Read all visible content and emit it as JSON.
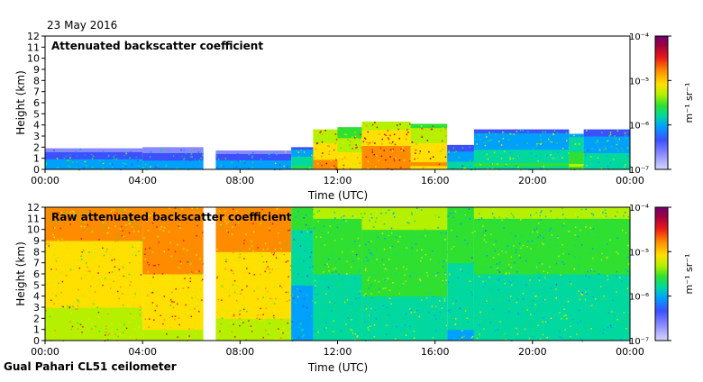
{
  "date_label": "23 May 2016",
  "footer": "Gual Pahari CL51 ceilometer",
  "colors": {
    "scale": [
      "#d6d6ff",
      "#8888ff",
      "#3c50ff",
      "#00a0ff",
      "#00d8a0",
      "#30e030",
      "#b4f000",
      "#ffe000",
      "#ff8c00",
      "#e81818",
      "#a00040",
      "#700070"
    ],
    "noise_blue": "#1a2cff"
  },
  "chart_data": [
    {
      "type": "heatmap",
      "title": "Attenuated backscatter coefficient",
      "xlabel": "Time (UTC)",
      "ylabel": "Height (km)",
      "x_ticks": [
        "00:00",
        "04:00",
        "08:00",
        "12:00",
        "16:00",
        "20:00",
        "00:00"
      ],
      "y_ticks": [
        "0",
        "1",
        "2",
        "3",
        "4",
        "5",
        "6",
        "7",
        "8",
        "9",
        "10",
        "11",
        "12"
      ],
      "xlim": [
        0,
        24
      ],
      "ylim": [
        0,
        12
      ],
      "colorbar": {
        "label": "m⁻¹ sr⁻¹",
        "scale": "log",
        "ticks": [
          "10⁻⁴",
          "10⁻⁵",
          "10⁻⁶",
          "10⁻⁷"
        ]
      },
      "blocks": [
        {
          "x0": 0.0,
          "x1": 4.0,
          "h": 1.9,
          "level": 0.35
        },
        {
          "x0": 4.0,
          "x1": 6.5,
          "h": 2.0,
          "level": 0.33
        },
        {
          "x0": 7.0,
          "x1": 10.1,
          "h": 1.7,
          "level": 0.35
        },
        {
          "x0": 10.1,
          "x1": 11.0,
          "h": 2.0,
          "level": 0.45
        },
        {
          "x0": 11.0,
          "x1": 12.0,
          "h": 3.6,
          "level": 0.72
        },
        {
          "x0": 12.0,
          "x1": 13.0,
          "h": 3.8,
          "level": 0.66
        },
        {
          "x0": 13.0,
          "x1": 15.0,
          "h": 4.3,
          "level": 0.76
        },
        {
          "x0": 15.0,
          "x1": 16.5,
          "h": 4.1,
          "level": 0.7
        },
        {
          "x0": 16.5,
          "x1": 17.6,
          "h": 2.2,
          "level": 0.4
        },
        {
          "x0": 17.6,
          "x1": 21.5,
          "h": 3.6,
          "level": 0.44
        },
        {
          "x0": 21.5,
          "x1": 22.1,
          "h": 3.2,
          "level": 0.52
        },
        {
          "x0": 22.1,
          "x1": 24.0,
          "h": 3.6,
          "level": 0.42
        }
      ],
      "gaps": [
        {
          "x0": 6.5,
          "x1": 7.0
        }
      ]
    },
    {
      "type": "heatmap",
      "title": "Raw attenuated backscatter coefficient",
      "xlabel": "Time (UTC)",
      "ylabel": "Height (km)",
      "x_ticks": [
        "00:00",
        "04:00",
        "08:00",
        "12:00",
        "16:00",
        "20:00",
        "00:00"
      ],
      "y_ticks": [
        "0",
        "1",
        "2",
        "3",
        "4",
        "5",
        "6",
        "7",
        "8",
        "9",
        "10",
        "11",
        "12"
      ],
      "xlim": [
        0,
        24
      ],
      "ylim": [
        0,
        12
      ],
      "colorbar": {
        "label": "m⁻¹ sr⁻¹",
        "scale": "log",
        "ticks": [
          "10⁻⁴",
          "10⁻⁵",
          "10⁻⁶",
          "10⁻⁷"
        ]
      },
      "blocks": [
        {
          "x0": 0.0,
          "x1": 4.0,
          "h": 12.0,
          "level": 0.62
        },
        {
          "x0": 4.0,
          "x1": 6.5,
          "h": 12.0,
          "level": 0.66
        },
        {
          "x0": 7.0,
          "x1": 10.1,
          "h": 12.0,
          "level": 0.64
        },
        {
          "x0": 10.1,
          "x1": 11.0,
          "h": 12.0,
          "level": 0.35
        },
        {
          "x0": 11.0,
          "x1": 13.0,
          "h": 12.0,
          "level": 0.42
        },
        {
          "x0": 13.0,
          "x1": 16.5,
          "h": 12.0,
          "level": 0.44
        },
        {
          "x0": 16.5,
          "x1": 17.6,
          "h": 12.0,
          "level": 0.4
        },
        {
          "x0": 17.6,
          "x1": 24.0,
          "h": 12.0,
          "level": 0.42
        }
      ],
      "gaps": [
        {
          "x0": 6.5,
          "x1": 7.0
        }
      ]
    }
  ]
}
